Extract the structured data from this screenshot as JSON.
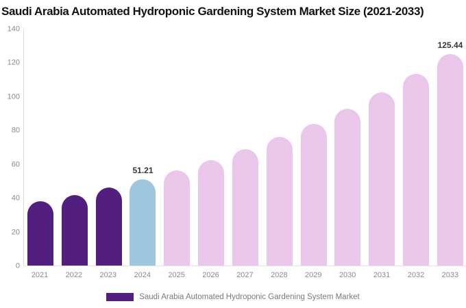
{
  "page": {
    "background_color": "#ffffff"
  },
  "chart_data": {
    "type": "bar",
    "title": "Saudi Arabia Automated Hydroponic Gardening System Market Size (2021-2033)",
    "xlabel": "",
    "ylabel": "",
    "categories": [
      "2021",
      "2022",
      "2023",
      "2024",
      "2025",
      "2026",
      "2027",
      "2028",
      "2029",
      "2030",
      "2031",
      "2032",
      "2033"
    ],
    "values": [
      38.0,
      42.0,
      46.4,
      51.21,
      56.6,
      62.5,
      69.0,
      76.3,
      84.2,
      93.1,
      102.8,
      113.6,
      125.44
    ],
    "value_labels": [
      "",
      "",
      "",
      "51.21",
      "",
      "",
      "",
      "",
      "",
      "",
      "",
      "",
      "125.44"
    ],
    "ylim": [
      0,
      140
    ],
    "yticks": [
      0,
      20,
      40,
      60,
      80,
      100,
      120,
      140
    ],
    "grid": false,
    "legend_position": "bottom",
    "bar_colors": [
      "#521E80",
      "#521E80",
      "#521E80",
      "#9FC8DE",
      "#E9C6EA",
      "#E9C6EA",
      "#E9C6EA",
      "#E9C6EA",
      "#E9C6EA",
      "#E9C6EA",
      "#E9C6EA",
      "#E9C6EA",
      "#E9C6EA"
    ],
    "colors": {
      "historical_bars": "#521E80",
      "base_year_bar": "#9FC8DE",
      "forecast_bars": "#E9C6EA",
      "axis_line": "#D9D9D9",
      "tick_text": "#8A8A8A",
      "value_label_text": "#363636",
      "title_text": "#111111",
      "legend_text": "#7A7A7A"
    },
    "legend": {
      "entries": [
        {
          "label": "Saudi Arabia Automated Hydroponic Gardening System Market",
          "color": "#521E80"
        }
      ]
    }
  }
}
